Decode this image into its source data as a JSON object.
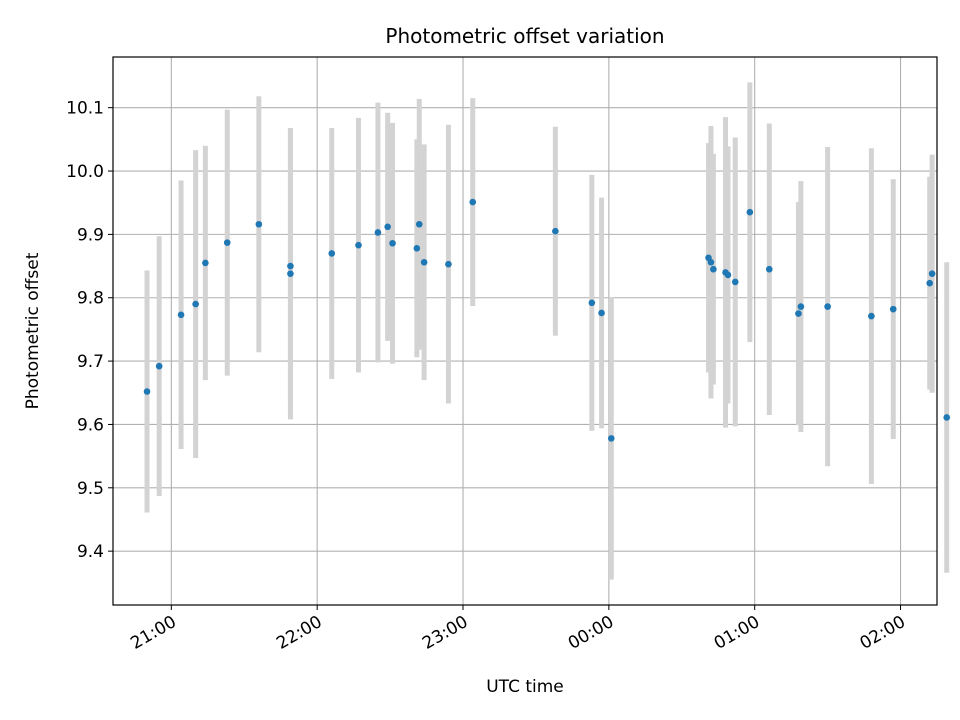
{
  "chart_data": {
    "type": "scatter",
    "title": "Photometric offset variation",
    "xlabel": "UTC time",
    "ylabel": "Photometric offset",
    "x_unit": "time",
    "xlim": [
      "20:36",
      "26:15"
    ],
    "ylim": [
      9.315,
      10.18
    ],
    "grid": true,
    "point_color": "#1f77b4",
    "errorbar_color": "#d3d3d3",
    "x_ticks": [
      {
        "value": "21:00",
        "label": "21:00"
      },
      {
        "value": "22:00",
        "label": "22:00"
      },
      {
        "value": "23:00",
        "label": "23:00"
      },
      {
        "value": "24:00",
        "label": "00:00"
      },
      {
        "value": "25:00",
        "label": "01:00"
      },
      {
        "value": "26:00",
        "label": "02:00"
      }
    ],
    "y_ticks": [
      9.4,
      9.5,
      9.6,
      9.7,
      9.8,
      9.9,
      10.0,
      10.1
    ],
    "y_tick_labels": [
      "9.4",
      "9.5",
      "9.6",
      "9.7",
      "9.8",
      "9.9",
      "10.0",
      "10.1"
    ],
    "points": [
      {
        "x": "20:50",
        "y": 9.652,
        "err": 0.191
      },
      {
        "x": "20:55",
        "y": 9.692,
        "err": 0.205
      },
      {
        "x": "21:04",
        "y": 9.773,
        "err": 0.212
      },
      {
        "x": "21:10",
        "y": 9.79,
        "err": 0.243
      },
      {
        "x": "21:14",
        "y": 9.855,
        "err": 0.185
      },
      {
        "x": "21:23",
        "y": 9.887,
        "err": 0.21
      },
      {
        "x": "21:36",
        "y": 9.916,
        "err": 0.202
      },
      {
        "x": "21:49",
        "y": 9.85,
        "err": 0.218
      },
      {
        "x": "21:49",
        "y": 9.838,
        "err": 0.23
      },
      {
        "x": "22:06",
        "y": 9.87,
        "err": 0.198
      },
      {
        "x": "22:17",
        "y": 9.883,
        "err": 0.201
      },
      {
        "x": "22:25",
        "y": 9.903,
        "err": 0.205
      },
      {
        "x": "22:29",
        "y": 9.912,
        "err": 0.18
      },
      {
        "x": "22:31",
        "y": 9.886,
        "err": 0.19
      },
      {
        "x": "22:41",
        "y": 9.878,
        "err": 0.172
      },
      {
        "x": "22:42",
        "y": 9.916,
        "err": 0.198
      },
      {
        "x": "22:44",
        "y": 9.856,
        "err": 0.186
      },
      {
        "x": "22:54",
        "y": 9.853,
        "err": 0.22
      },
      {
        "x": "23:04",
        "y": 9.951,
        "err": 0.164
      },
      {
        "x": "23:38",
        "y": 9.905,
        "err": 0.165
      },
      {
        "x": "23:53",
        "y": 9.792,
        "err": 0.202
      },
      {
        "x": "23:57",
        "y": 9.776,
        "err": 0.182
      },
      {
        "x": "24:01",
        "y": 9.578,
        "err": 0.223
      },
      {
        "x": "24:41",
        "y": 9.863,
        "err": 0.181
      },
      {
        "x": "24:42",
        "y": 9.856,
        "err": 0.215
      },
      {
        "x": "24:43",
        "y": 9.845,
        "err": 0.182
      },
      {
        "x": "24:48",
        "y": 9.84,
        "err": 0.245
      },
      {
        "x": "24:49",
        "y": 9.836,
        "err": 0.203
      },
      {
        "x": "24:52",
        "y": 9.825,
        "err": 0.228
      },
      {
        "x": "24:58",
        "y": 9.935,
        "err": 0.205
      },
      {
        "x": "25:06",
        "y": 9.845,
        "err": 0.23
      },
      {
        "x": "25:18",
        "y": 9.775,
        "err": 0.176
      },
      {
        "x": "25:19",
        "y": 9.786,
        "err": 0.198
      },
      {
        "x": "25:30",
        "y": 9.786,
        "err": 0.252
      },
      {
        "x": "25:48",
        "y": 9.771,
        "err": 0.265
      },
      {
        "x": "25:57",
        "y": 9.782,
        "err": 0.205
      },
      {
        "x": "26:12",
        "y": 9.823,
        "err": 0.168
      },
      {
        "x": "26:13",
        "y": 9.838,
        "err": 0.188
      },
      {
        "x": "26:19",
        "y": 9.611,
        "err": 0.245
      }
    ]
  }
}
